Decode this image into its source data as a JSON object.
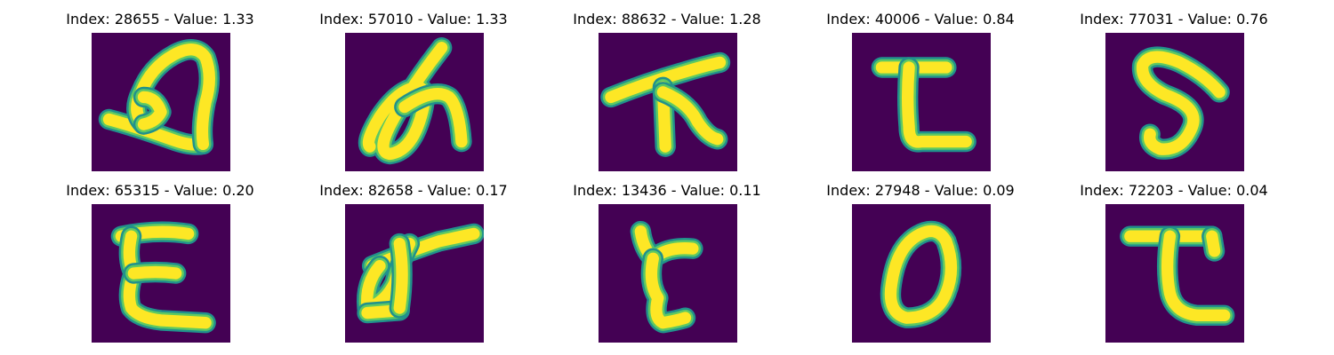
{
  "chart_data": {
    "type": "image-grid",
    "colormap": "viridis",
    "background_color": "#440154",
    "stroke_colors": [
      "#21918c",
      "#5ec962",
      "#fde725"
    ],
    "panels": [
      {
        "title": "Index: 28655 - Value: 1.33",
        "index": 28655,
        "value": 1.33,
        "glyph": "loop-with-tail"
      },
      {
        "title": "Index: 57010 - Value: 1.33",
        "index": 57010,
        "value": 1.33,
        "glyph": "cursive-scribble"
      },
      {
        "title": "Index: 88632 - Value: 1.28",
        "index": 88632,
        "value": 1.28,
        "glyph": "bar-over-inverted-v"
      },
      {
        "title": "Index: 40006 - Value: 0.84",
        "index": 40006,
        "value": 0.84,
        "glyph": "letter-t-l"
      },
      {
        "title": "Index: 77031 - Value: 0.76",
        "index": 77031,
        "value": 0.76,
        "glyph": "letter-s"
      },
      {
        "title": "Index: 65315 - Value: 0.20",
        "index": 65315,
        "value": 0.2,
        "glyph": "letter-e"
      },
      {
        "title": "Index: 82658 - Value: 0.17",
        "index": 82658,
        "value": 0.17,
        "glyph": "stroke-over-loop"
      },
      {
        "title": "Index: 13436 - Value: 0.11",
        "index": 13436,
        "value": 0.11,
        "glyph": "letter-r"
      },
      {
        "title": "Index: 27948 - Value: 0.09",
        "index": 27948,
        "value": 0.09,
        "glyph": "letter-o"
      },
      {
        "title": "Index: 72203 - Value: 0.04",
        "index": 72203,
        "value": 0.04,
        "glyph": "letter-t-curl"
      }
    ]
  }
}
